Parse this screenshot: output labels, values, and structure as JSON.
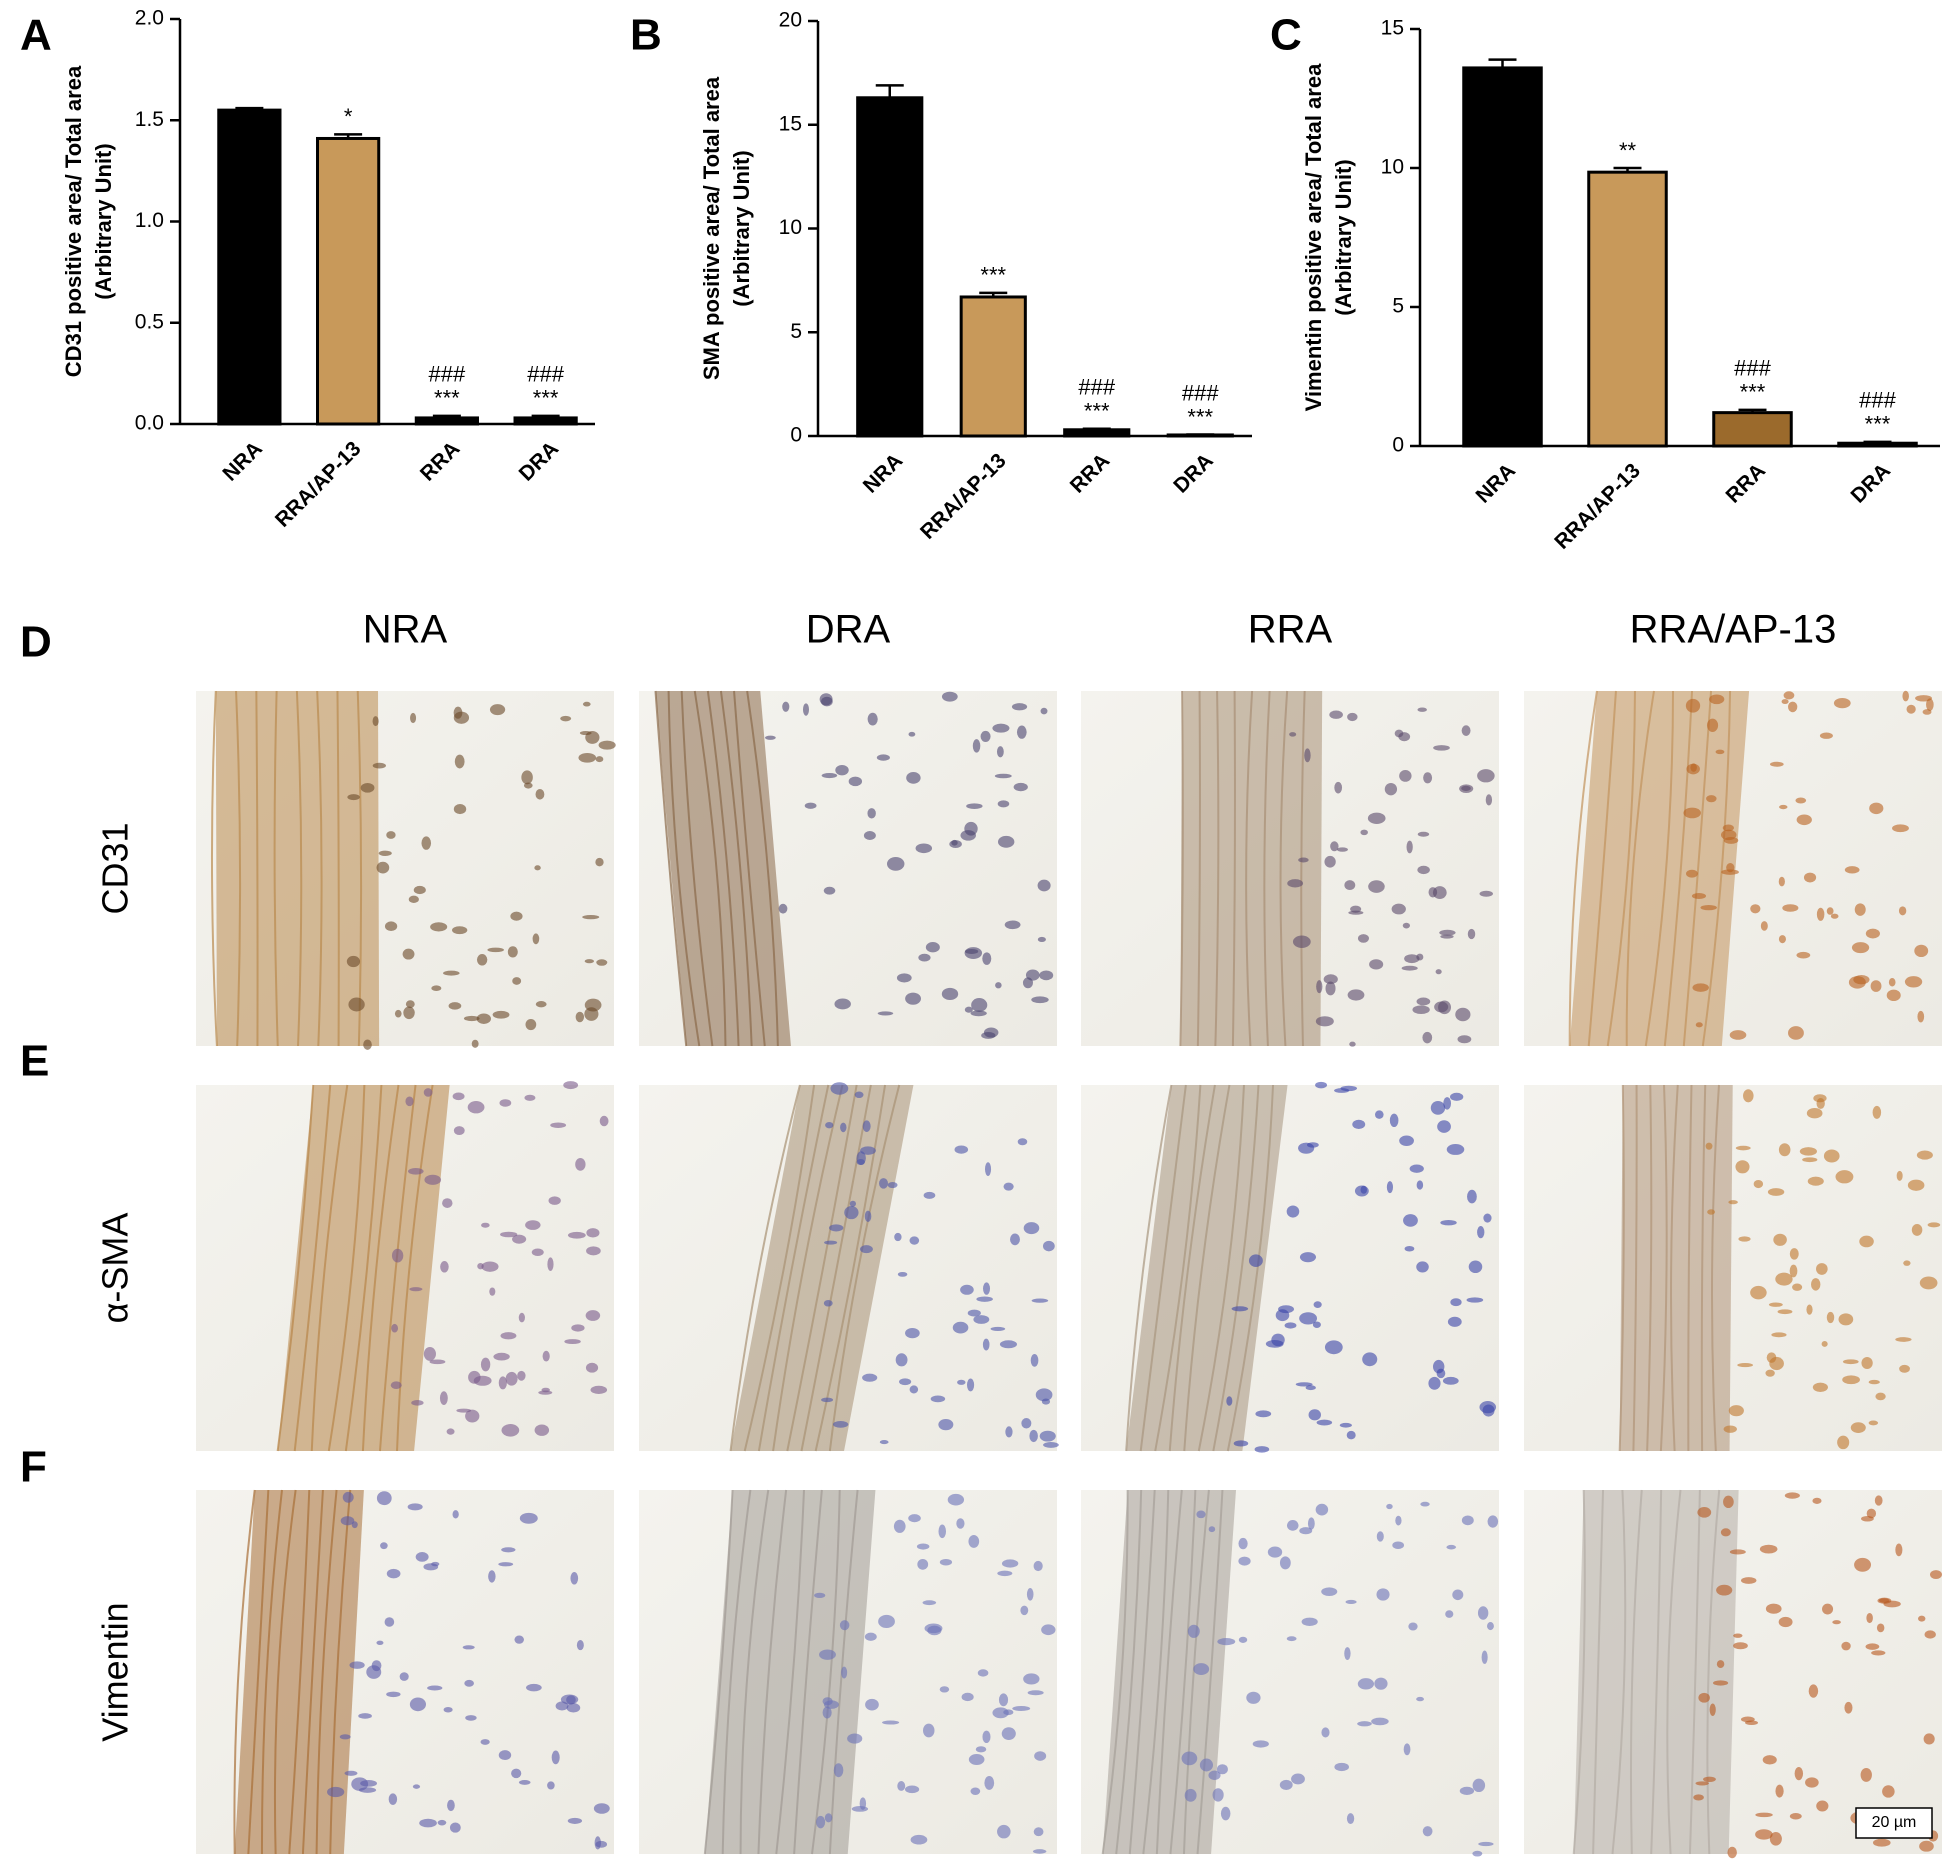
{
  "chart_data": [
    {
      "type": "bar",
      "panel": "A",
      "ylabel": [
        "CD31 positive area/ Total area",
        "(Arbitrary Unit)"
      ],
      "categories": [
        "NRA",
        "RRA/AP-13",
        "RRA",
        "DRA"
      ],
      "values": [
        1.55,
        1.41,
        0.03,
        0.03
      ],
      "errors": [
        0.01,
        0.02,
        0.01,
        0.01
      ],
      "colors": [
        "#000000",
        "#c8995a",
        "#000000",
        "#000000"
      ],
      "annotations": [
        null,
        [
          "*"
        ],
        [
          "###",
          "***"
        ],
        [
          "###",
          "***"
        ]
      ],
      "ylim": [
        0,
        2
      ],
      "yticks": [
        {
          "value": 0,
          "label": "0.0"
        },
        0.5,
        {
          "value": 1,
          "label": "1.0"
        },
        1.5,
        {
          "value": 2,
          "label": "2.0"
        }
      ]
    },
    {
      "type": "bar",
      "panel": "B",
      "ylabel": [
        "SMA positive area/ Total area",
        "(Arbitrary Unit)"
      ],
      "categories": [
        "NRA",
        "RRA/AP-13",
        "RRA",
        "DRA"
      ],
      "values": [
        16.3,
        6.7,
        0.3,
        0.05
      ],
      "errors": [
        0.6,
        0.2,
        0.05,
        0.02
      ],
      "colors": [
        "#000000",
        "#c8995a",
        "#000000",
        "#000000"
      ],
      "annotations": [
        null,
        [
          "***"
        ],
        [
          "###",
          "***"
        ],
        [
          "###",
          "***"
        ]
      ],
      "ylim": [
        0,
        20
      ],
      "yticks": [
        0,
        5,
        10,
        15,
        20
      ]
    },
    {
      "type": "bar",
      "panel": "C",
      "ylabel": [
        "Vimentin positive area/ Total area",
        "(Arbitrary Unit)"
      ],
      "categories": [
        "NRA",
        "RRA/AP-13",
        "RRA",
        "DRA"
      ],
      "values": [
        13.6,
        9.85,
        1.2,
        0.1
      ],
      "errors": [
        0.3,
        0.15,
        0.1,
        0.05
      ],
      "colors": [
        "#000000",
        "#c8995a",
        "#9b6a2c",
        "#000000"
      ],
      "annotations": [
        null,
        [
          "**"
        ],
        [
          "###",
          "***"
        ],
        [
          "###",
          "***"
        ]
      ],
      "ylim": [
        0,
        15
      ],
      "yticks": [
        0,
        5,
        10,
        15
      ]
    }
  ],
  "micrographs": {
    "columns": [
      "NRA",
      "DRA",
      "RRA",
      "RRA/AP-13"
    ],
    "rows": [
      {
        "letter": "D",
        "label": "CD31"
      },
      {
        "letter": "E",
        "label": "α-SMA"
      },
      {
        "letter": "F",
        "label": "Vimentin"
      }
    ],
    "scale_bar": "20 µm"
  }
}
